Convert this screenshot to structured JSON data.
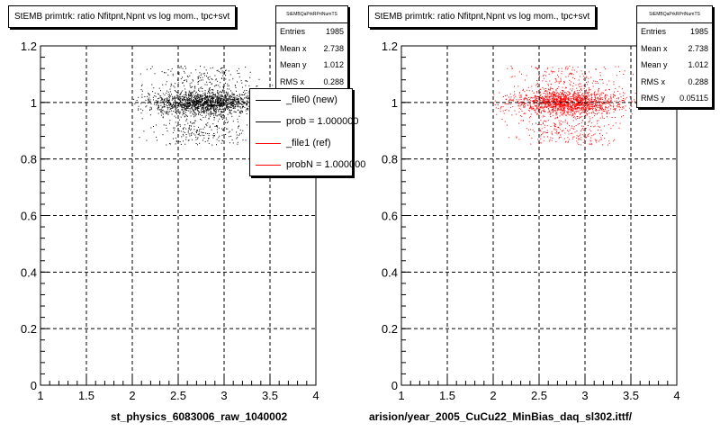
{
  "colors": {
    "series_file0": "#000000",
    "series_file1": "#ff0000",
    "grid": "#000000"
  },
  "footer_text": "",
  "chart_data": [
    {
      "type": "scatter",
      "title": "StEMB primtrk: ratio Nfitpnt,Npnt vs log mom., tpc+svt",
      "xlabel": "st_physics_6083006_raw_1040002",
      "ylabel": "",
      "xlim": [
        1,
        4
      ],
      "ylim": [
        0,
        1.2
      ],
      "x_ticks": [
        "1",
        "1.5",
        "2",
        "2.5",
        "3",
        "3.5",
        "4"
      ],
      "y_ticks": [
        "0",
        "0.2",
        "0.4",
        "0.6",
        "0.8",
        "1",
        "1.2"
      ],
      "grid": true,
      "point_color": "#000000",
      "cluster": {
        "x_range": [
          2.0,
          3.6
        ],
        "y_center": 1.0,
        "y_range": [
          0.85,
          1.13
        ],
        "count": 1985
      },
      "stats": {
        "header": "StEMBQaPrkRPrtNumTS",
        "rows": [
          {
            "label": "Entries",
            "value": "1985"
          },
          {
            "label": "Mean x",
            "value": "2.738"
          },
          {
            "label": "Mean y",
            "value": "1.012"
          },
          {
            "label": "RMS x",
            "value": "0.288"
          }
        ]
      },
      "legend": {
        "placement": "top-right",
        "entries": [
          {
            "label": "_file0 (new)",
            "color": "#000000"
          },
          {
            "label": "prob = 1.000000",
            "color": "#000000"
          },
          {
            "label": "_file1 (ref)",
            "color": "#ff0000"
          },
          {
            "label": "probN = 1.000000",
            "color": "#ff0000"
          }
        ]
      }
    },
    {
      "type": "scatter",
      "title": "StEMB primtrk: ratio Nfitpnt,Npnt vs log mom., tpc+svt",
      "xlabel": "arision/year_2005_CuCu22_MinBias_daq_sl302.ittf/",
      "ylabel": "",
      "xlim": [
        1,
        4
      ],
      "ylim": [
        0,
        1.2
      ],
      "x_ticks": [
        "1",
        "1.5",
        "2",
        "2.5",
        "3",
        "3.5",
        "4"
      ],
      "y_ticks": [
        "0",
        "0.2",
        "0.4",
        "0.6",
        "0.8",
        "1",
        "1.2"
      ],
      "grid": true,
      "point_color": "#ff0000",
      "cluster": {
        "x_range": [
          2.0,
          3.6
        ],
        "y_center": 1.0,
        "y_range": [
          0.85,
          1.13
        ],
        "count": 1985
      },
      "stats": {
        "header": "StEMBQaPrkRPrtNumTS",
        "rows": [
          {
            "label": "Entries",
            "value": "1985"
          },
          {
            "label": "Mean x",
            "value": "2.738"
          },
          {
            "label": "Mean y",
            "value": "1.012"
          },
          {
            "label": "RMS x",
            "value": "0.288"
          },
          {
            "label": "RMS y",
            "value": "0.05115"
          }
        ]
      }
    }
  ]
}
